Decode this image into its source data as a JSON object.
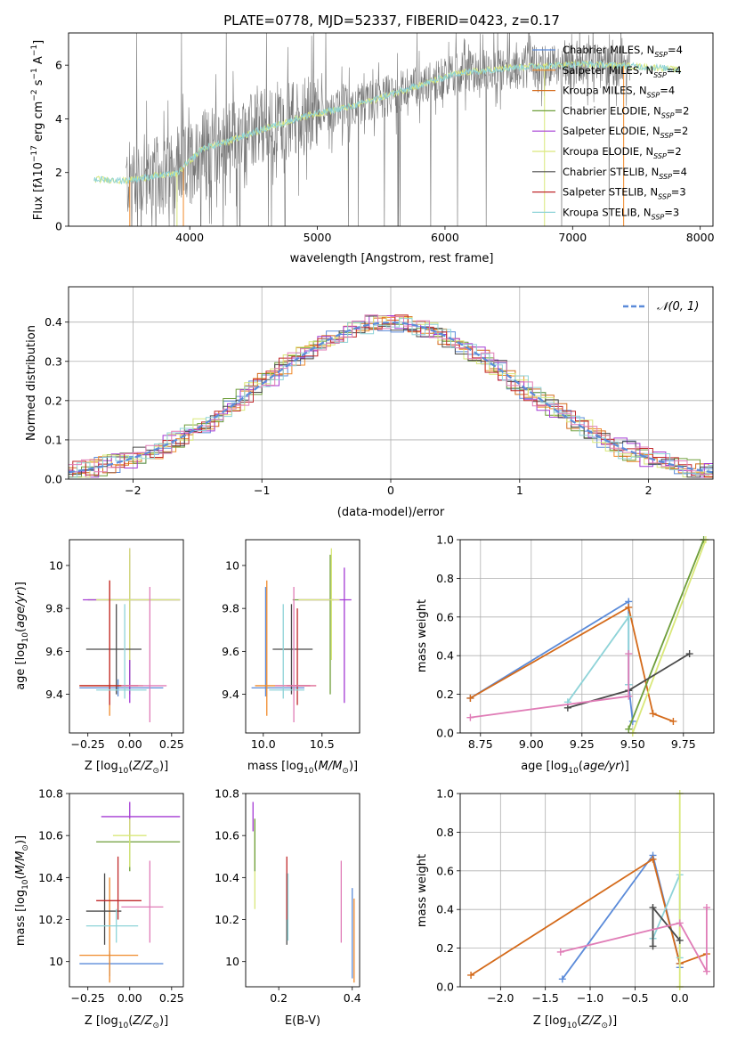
{
  "colors": {
    "chabrier_miles": "#5b8bd9",
    "salpeter_miles": "#f08a2a",
    "kroupa_miles": "#d46a1a",
    "chabrier_elodie": "#6e9e3a",
    "salpeter_elodie": "#a43ad4",
    "kroupa_elodie": "#d9e87a",
    "chabrier_stelib": "#4a4a4a",
    "salpeter_stelib": "#c0292b",
    "kroupa_stelib": "#8ed3d8",
    "normal": "#5b8bd9",
    "pink": "#e07db7",
    "data": "#777777"
  },
  "chart_data": [
    {
      "id": "spectrum",
      "type": "line",
      "title": "PLATE=0778, MJD=52337, FIBERID=0423, z=0.17",
      "xlabel": "wavelength [Angstrom, rest frame]",
      "ylabel": "Flux [f_λ 10^-17 erg cm^-2 s^-1 A^-1]",
      "xlim": [
        3050,
        8100
      ],
      "ylim": [
        0,
        7.2
      ],
      "xticks": [
        4000,
        5000,
        6000,
        7000,
        8000
      ],
      "yticks": [
        0,
        2,
        4,
        6
      ],
      "legend_position": "upper-right",
      "series": [
        {
          "name": "Chabrier MILES, N_SSP=4",
          "color": "#5b8bd9"
        },
        {
          "name": "Salpeter MILES, N_SSP=4",
          "color": "#f08a2a"
        },
        {
          "name": "Kroupa MILES, N_SSP=4",
          "color": "#d46a1a"
        },
        {
          "name": "Chabrier ELODIE, N_SSP=2",
          "color": "#6e9e3a"
        },
        {
          "name": "Salpeter ELODIE, N_SSP=2",
          "color": "#a43ad4"
        },
        {
          "name": "Kroupa ELODIE, N_SSP=2",
          "color": "#d9e87a"
        },
        {
          "name": "Chabrier STELIB, N_SSP=4",
          "color": "#4a4a4a"
        },
        {
          "name": "Salpeter STELIB, N_SSP=3",
          "color": "#c0292b"
        },
        {
          "name": "Kroupa STELIB, N_SSP=3",
          "color": "#8ed3d8"
        }
      ],
      "continuum": {
        "x": [
          3250,
          3500,
          3700,
          3900,
          4100,
          4300,
          4500,
          4700,
          4900,
          5100,
          5300,
          5500,
          5700,
          5900,
          6100,
          6300,
          6500,
          6700,
          6900,
          7100,
          7300,
          7500,
          7700,
          7850
        ],
        "y": [
          1.75,
          1.7,
          1.85,
          1.95,
          2.9,
          3.15,
          3.5,
          3.8,
          4.1,
          4.3,
          4.5,
          4.8,
          5.1,
          5.4,
          5.7,
          5.8,
          5.9,
          5.95,
          6.0,
          6.05,
          6.0,
          5.95,
          5.9,
          5.8
        ]
      },
      "data_range": [
        3500,
        7450
      ]
    },
    {
      "id": "residuals",
      "type": "histogram",
      "xlabel": "(data-model)/error",
      "ylabel": "Normed distribution",
      "xlim": [
        -2.5,
        2.5
      ],
      "ylim": [
        0,
        0.49
      ],
      "xticks": [
        -2,
        -1,
        0,
        1,
        2
      ],
      "yticks": [
        0.0,
        0.1,
        0.2,
        0.3,
        0.4
      ],
      "legend": "N(0,1)",
      "legend_position": "upper-right",
      "bin_width": 0.1
    },
    {
      "id": "age_vs_Z",
      "type": "errorbar",
      "xlabel": "Z [log10(Z/Z_sun)]",
      "ylabel": "age  [log10(age/yr)]",
      "xlim": [
        -0.36,
        0.32
      ],
      "ylim": [
        9.22,
        10.12
      ],
      "xticks": [
        -0.25,
        0.0,
        0.25
      ],
      "xticklabels": [
        "−0.25",
        "0.00",
        "0.25"
      ],
      "yticks": [
        9.4,
        9.6,
        9.8,
        10.0
      ],
      "points": [
        {
          "c": "#5b8bd9",
          "x": -0.07,
          "xl": -0.3,
          "xh": 0.2,
          "y": 9.43,
          "yl": 9.39,
          "yh": 9.47
        },
        {
          "c": "#f08a2a",
          "x": -0.12,
          "xl": -0.3,
          "xh": 0.08,
          "y": 9.44,
          "yl": 9.3,
          "yh": 9.93
        },
        {
          "c": "#6e9e3a",
          "x": 0.0,
          "xl": -0.25,
          "xh": 0.3,
          "y": 9.84,
          "yl": 9.4,
          "yh": 10.05
        },
        {
          "c": "#a43ad4",
          "x": 0.0,
          "xl": -0.28,
          "xh": 0.3,
          "y": 9.84,
          "yl": 9.36,
          "yh": 10.08
        },
        {
          "c": "#d9e87a",
          "x": 0.0,
          "xl": -0.2,
          "xh": 0.3,
          "y": 9.84,
          "yl": 9.56,
          "yh": 10.08
        },
        {
          "c": "#4a4a4a",
          "x": -0.08,
          "xl": -0.26,
          "xh": 0.07,
          "y": 9.61,
          "yl": 9.4,
          "yh": 9.82
        },
        {
          "c": "#c0292b",
          "x": -0.12,
          "xl": -0.3,
          "xh": 0.05,
          "y": 9.44,
          "yl": 9.35,
          "yh": 9.93
        },
        {
          "c": "#8ed3d8",
          "x": -0.03,
          "xl": -0.2,
          "xh": 0.1,
          "y": 9.42,
          "yl": 9.38,
          "yh": 9.82
        },
        {
          "c": "#e07db7",
          "x": 0.12,
          "xl": -0.05,
          "xh": 0.22,
          "y": 9.44,
          "yl": 9.27,
          "yh": 9.9
        }
      ]
    },
    {
      "id": "age_vs_mass",
      "type": "errorbar",
      "xlabel": "mass [log10(M/M_sun)]",
      "ylabel": "",
      "xlim": [
        9.85,
        10.82
      ],
      "ylim": [
        9.22,
        10.12
      ],
      "xticks": [
        10.0,
        10.5
      ],
      "xticklabels": [
        "10.0",
        "10.5"
      ],
      "yticks": [
        9.4,
        9.6,
        9.8,
        10.0
      ],
      "points": [
        {
          "c": "#5b8bd9",
          "x": 10.02,
          "xl": 9.9,
          "xh": 10.35,
          "y": 9.43,
          "yl": 9.39,
          "yh": 9.9
        },
        {
          "c": "#f08a2a",
          "x": 10.03,
          "xl": 9.93,
          "xh": 10.45,
          "y": 9.44,
          "yl": 9.3,
          "yh": 9.93
        },
        {
          "c": "#6e9e3a",
          "x": 10.57,
          "xl": 10.25,
          "xh": 10.6,
          "y": 9.84,
          "yl": 9.4,
          "yh": 10.05
        },
        {
          "c": "#a43ad4",
          "x": 10.69,
          "xl": 10.3,
          "xh": 10.75,
          "y": 9.84,
          "yl": 9.36,
          "yh": 9.99
        },
        {
          "c": "#d9e87a",
          "x": 10.58,
          "xl": 10.3,
          "xh": 10.65,
          "y": 9.84,
          "yl": 9.56,
          "yh": 10.08
        },
        {
          "c": "#4a4a4a",
          "x": 10.24,
          "xl": 10.08,
          "xh": 10.42,
          "y": 9.61,
          "yl": 9.4,
          "yh": 9.82
        },
        {
          "c": "#c0292b",
          "x": 10.29,
          "xl": 10.2,
          "xh": 10.4,
          "y": 9.44,
          "yl": 9.35,
          "yh": 9.8
        },
        {
          "c": "#8ed3d8",
          "x": 10.17,
          "xl": 10.05,
          "xh": 10.35,
          "y": 9.42,
          "yl": 9.38,
          "yh": 9.82
        },
        {
          "c": "#e07db7",
          "x": 10.26,
          "xl": 10.1,
          "xh": 10.45,
          "y": 9.44,
          "yl": 9.27,
          "yh": 9.9
        }
      ]
    },
    {
      "id": "weight_vs_age",
      "type": "line",
      "xlabel": "age  [log10(age/yr)]",
      "ylabel": "mass weight",
      "xlim": [
        8.65,
        9.9
      ],
      "ylim": [
        0,
        1
      ],
      "xticks": [
        8.75,
        9.0,
        9.25,
        9.5,
        9.75
      ],
      "xticklabels": [
        "8.75",
        "9.00",
        "9.25",
        "9.50",
        "9.75"
      ],
      "yticks": [
        0.0,
        0.2,
        0.4,
        0.6,
        0.8,
        1.0
      ],
      "series": [
        {
          "c": "#5b8bd9",
          "x": [
            8.7,
            9.48,
            9.48,
            9.5
          ],
          "y": [
            0.18,
            0.68,
            0.25,
            0.06
          ]
        },
        {
          "c": "#d46a1a",
          "x": [
            8.7,
            9.48,
            9.6,
            9.7
          ],
          "y": [
            0.18,
            0.65,
            0.1,
            0.06
          ]
        },
        {
          "c": "#8ed3d8",
          "x": [
            9.18,
            9.48,
            9.48
          ],
          "y": [
            0.16,
            0.6,
            0.25
          ]
        },
        {
          "c": "#6e9e3a",
          "x": [
            9.48,
            9.85
          ],
          "y": [
            0.02,
            1.0
          ]
        },
        {
          "c": "#d9e87a",
          "x": [
            9.5,
            9.86
          ],
          "y": [
            0.0,
            1.0
          ]
        },
        {
          "c": "#4a4a4a",
          "x": [
            9.18,
            9.48,
            9.78
          ],
          "y": [
            0.13,
            0.22,
            0.41
          ]
        },
        {
          "c": "#e07db7",
          "x": [
            8.7,
            9.48,
            9.48
          ],
          "y": [
            0.08,
            0.19,
            0.41
          ]
        }
      ]
    },
    {
      "id": "mass_vs_Z",
      "type": "errorbar",
      "xlabel": "Z [log10(Z/Z_sun)]",
      "ylabel": "mass [log10(M/M_sun)]",
      "xlim": [
        -0.36,
        0.32
      ],
      "ylim": [
        9.88,
        10.8
      ],
      "xticks": [
        -0.25,
        0.0,
        0.25
      ],
      "xticklabels": [
        "−0.25",
        "0.00",
        "0.25"
      ],
      "yticks": [
        10.0,
        10.2,
        10.4,
        10.6,
        10.8
      ],
      "points": [
        {
          "c": "#5b8bd9",
          "x": -0.12,
          "xl": -0.3,
          "xh": 0.2,
          "y": 9.99,
          "yl": 9.93,
          "yh": 10.05
        },
        {
          "c": "#f08a2a",
          "x": -0.12,
          "xl": -0.3,
          "xh": 0.05,
          "y": 10.03,
          "yl": 9.9,
          "yh": 10.4
        },
        {
          "c": "#6e9e3a",
          "x": 0.0,
          "xl": -0.2,
          "xh": 0.3,
          "y": 10.57,
          "yl": 10.43,
          "yh": 10.68
        },
        {
          "c": "#a43ad4",
          "x": 0.0,
          "xl": -0.17,
          "xh": 0.3,
          "y": 10.69,
          "yl": 10.6,
          "yh": 10.76
        },
        {
          "c": "#d9e87a",
          "x": 0.0,
          "xl": -0.1,
          "xh": 0.1,
          "y": 10.6,
          "yl": 10.45,
          "yh": 10.68
        },
        {
          "c": "#4a4a4a",
          "x": -0.15,
          "xl": -0.26,
          "xh": -0.05,
          "y": 10.24,
          "yl": 10.08,
          "yh": 10.42
        },
        {
          "c": "#c0292b",
          "x": -0.07,
          "xl": -0.2,
          "xh": 0.07,
          "y": 10.29,
          "yl": 10.2,
          "yh": 10.5
        },
        {
          "c": "#8ed3d8",
          "x": -0.08,
          "xl": -0.26,
          "xh": 0.05,
          "y": 10.17,
          "yl": 10.09,
          "yh": 10.25
        },
        {
          "c": "#e07db7",
          "x": 0.12,
          "xl": -0.05,
          "xh": 0.2,
          "y": 10.26,
          "yl": 10.09,
          "yh": 10.48
        }
      ]
    },
    {
      "id": "mass_vs_ebv",
      "type": "errorbar",
      "xlabel": "E(B-V)",
      "ylabel": "",
      "xlim": [
        0.11,
        0.42
      ],
      "ylim": [
        9.88,
        10.8
      ],
      "xticks": [
        0.2,
        0.4
      ],
      "xticklabels": [
        "0.2",
        "0.4"
      ],
      "yticks": [
        10.0,
        10.2,
        10.4,
        10.6,
        10.8
      ],
      "points": [
        {
          "c": "#5b8bd9",
          "x": 0.4,
          "y": 10.02,
          "yl": 9.92,
          "yh": 10.35
        },
        {
          "c": "#f08a2a",
          "x": 0.405,
          "y": 10.03,
          "yl": 9.9,
          "yh": 10.3
        },
        {
          "c": "#a43ad4",
          "x": 0.13,
          "y": 10.69,
          "yl": 10.62,
          "yh": 10.76
        },
        {
          "c": "#d9e87a",
          "x": 0.135,
          "y": 10.5,
          "yl": 10.25,
          "yh": 10.68
        },
        {
          "c": "#6e9e3a",
          "x": 0.135,
          "y": 10.57,
          "yl": 10.43,
          "yh": 10.68
        },
        {
          "c": "#4a4a4a",
          "x": 0.222,
          "y": 10.24,
          "yl": 10.08,
          "yh": 10.42
        },
        {
          "c": "#c0292b",
          "x": 0.222,
          "y": 10.35,
          "yl": 10.2,
          "yh": 10.5
        },
        {
          "c": "#8ed3d8",
          "x": 0.225,
          "y": 10.25,
          "yl": 10.1,
          "yh": 10.42
        },
        {
          "c": "#e07db7",
          "x": 0.37,
          "y": 10.26,
          "yl": 10.09,
          "yh": 10.48
        }
      ]
    },
    {
      "id": "weight_vs_Z",
      "type": "line",
      "xlabel": "Z [log10(Z/Z_sun)]",
      "ylabel": "mass weight",
      "xlim": [
        -2.45,
        0.38
      ],
      "ylim": [
        0,
        1
      ],
      "xticks": [
        -2.0,
        -1.5,
        -1.0,
        -0.5,
        0.0
      ],
      "xticklabels": [
        "−2.0",
        "−1.5",
        "−1.0",
        "−0.5",
        "0.0"
      ],
      "yticks": [
        0.0,
        0.2,
        0.4,
        0.6,
        0.8,
        1.0
      ],
      "series": [
        {
          "c": "#5b8bd9",
          "x": [
            -1.31,
            -0.3,
            0.0,
            0.0
          ],
          "y": [
            0.04,
            0.68,
            0.12,
            0.1
          ]
        },
        {
          "c": "#d46a1a",
          "x": [
            -2.33,
            -0.3,
            0.0,
            0.3
          ],
          "y": [
            0.06,
            0.66,
            0.12,
            0.17
          ]
        },
        {
          "c": "#8ed3d8",
          "x": [
            -0.3,
            0.0,
            0.0
          ],
          "y": [
            0.25,
            0.58,
            0.15
          ]
        },
        {
          "c": "#d9e87a",
          "x": [
            0.0,
            0.0
          ],
          "y": [
            0.0,
            1.0
          ]
        },
        {
          "c": "#4a4a4a",
          "x": [
            -0.3,
            -0.3,
            0.0
          ],
          "y": [
            0.21,
            0.41,
            0.24
          ]
        },
        {
          "c": "#e07db7",
          "x": [
            -1.33,
            0.0,
            0.3,
            0.3
          ],
          "y": [
            0.18,
            0.33,
            0.08,
            0.41
          ]
        }
      ]
    }
  ]
}
